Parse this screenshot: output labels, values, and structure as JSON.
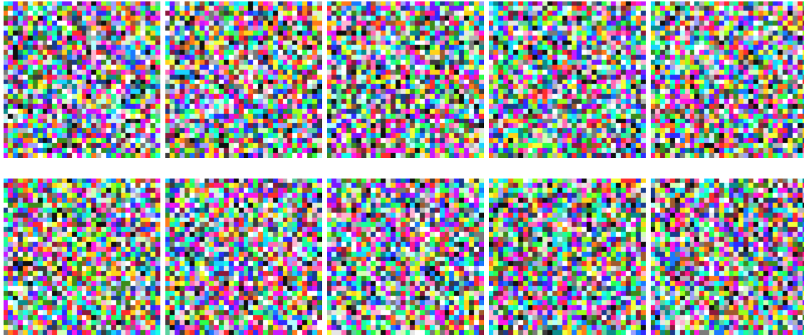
{
  "grid": {
    "rows": 2,
    "cols": 5,
    "tile_pixel_resolution": 32,
    "palette": [
      "#ff2d2d",
      "#ff7a1a",
      "#ffd21a",
      "#f5ff3a",
      "#9cff1a",
      "#2dff4a",
      "#1aff9c",
      "#1affe8",
      "#1ad2ff",
      "#1a7aff",
      "#2d2dff",
      "#7a1aff",
      "#c81aff",
      "#ff1ae8",
      "#ff1a8c",
      "#ff6bb5",
      "#ffffff",
      "#e6e6e6",
      "#b4b4b4",
      "#7a7a7a",
      "#3c3c3c",
      "#111111",
      "#a05a2d",
      "#5ad2a0",
      "#9ca0ff",
      "#ffb4d2",
      "#d2ffb4",
      "#b4ffff",
      "#1a3c8c",
      "#8c1a3c",
      "#3c8c1a",
      "#0a8c8c"
    ],
    "tiles": [
      {
        "seed": 11
      },
      {
        "seed": 23
      },
      {
        "seed": 37
      },
      {
        "seed": 41
      },
      {
        "seed": 59
      },
      {
        "seed": 67
      },
      {
        "seed": 73
      },
      {
        "seed": 89
      },
      {
        "seed": 97
      },
      {
        "seed": 103
      }
    ]
  }
}
